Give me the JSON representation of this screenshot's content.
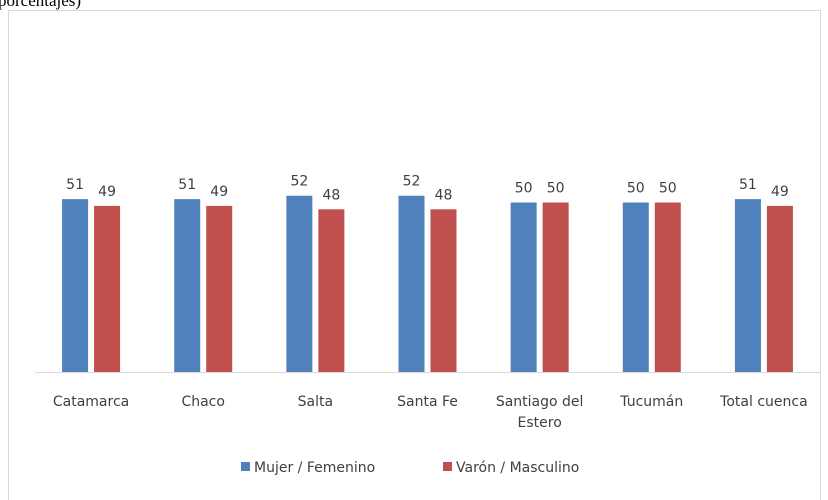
{
  "chart_data": {
    "type": "bar",
    "title": "porcentajes)",
    "categories": [
      "Catamarca",
      "Chaco",
      "Salta",
      "Santa Fe",
      "Santiago del Estero",
      "Tucumán",
      "Total cuenca"
    ],
    "series": [
      {
        "name": "Mujer / Femenino",
        "color": "#4f81bd",
        "values": [
          51,
          51,
          52,
          52,
          50,
          50,
          51
        ]
      },
      {
        "name": "Varón / Masculino",
        "color": "#c0504d",
        "values": [
          49,
          49,
          48,
          48,
          50,
          50,
          49
        ]
      }
    ],
    "ylim": [
      0,
      100
    ],
    "legend": "bottom"
  }
}
